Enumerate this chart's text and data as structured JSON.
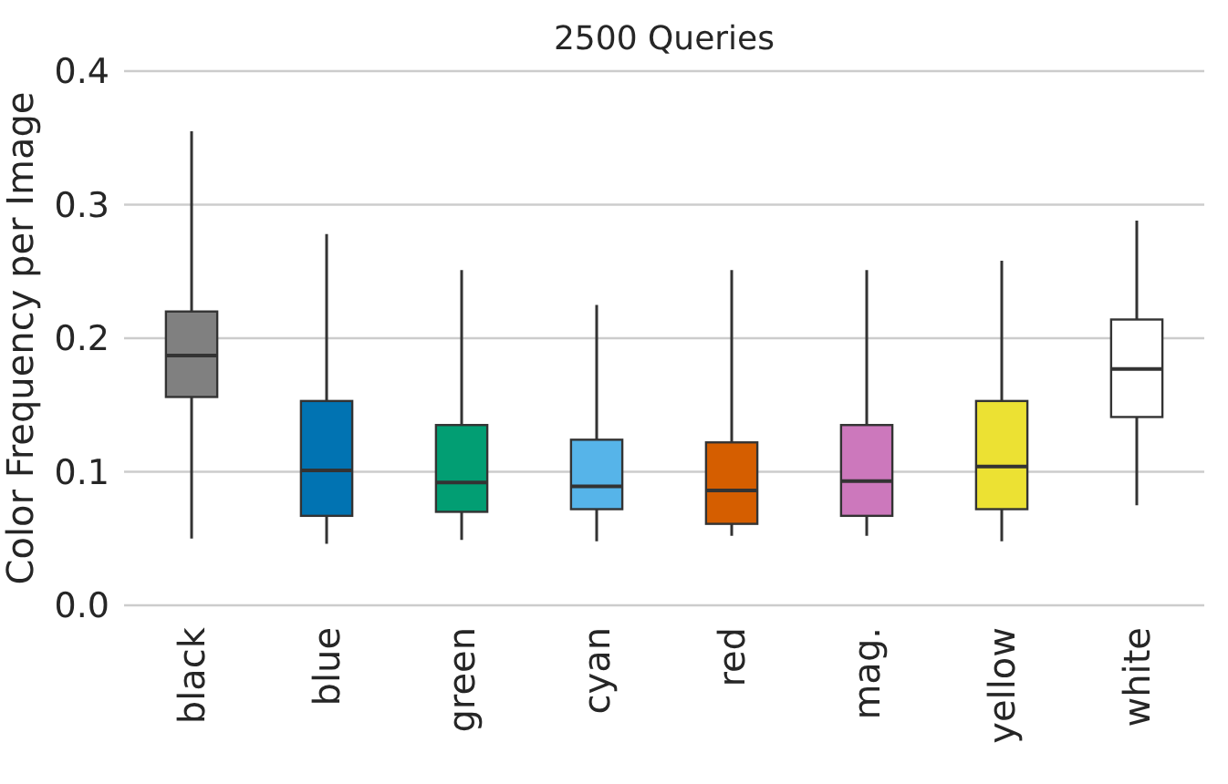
{
  "chart_data": {
    "type": "box",
    "title": "2500 Queries",
    "ylabel": "Color Frequency per Image",
    "categories": [
      "black",
      "blue",
      "green",
      "cyan",
      "red",
      "mag.",
      "yellow",
      "white"
    ],
    "colors": [
      "#808080",
      "#0173b2",
      "#029e73",
      "#56b4e9",
      "#d55e00",
      "#cc78bc",
      "#ece133",
      "#ffffff"
    ],
    "boxes": [
      {
        "low": 0.05,
        "q1": 0.156,
        "median": 0.187,
        "q3": 0.22,
        "high": 0.355
      },
      {
        "low": 0.046,
        "q1": 0.067,
        "median": 0.101,
        "q3": 0.153,
        "high": 0.278
      },
      {
        "low": 0.049,
        "q1": 0.07,
        "median": 0.092,
        "q3": 0.135,
        "high": 0.251
      },
      {
        "low": 0.048,
        "q1": 0.072,
        "median": 0.089,
        "q3": 0.124,
        "high": 0.225
      },
      {
        "low": 0.052,
        "q1": 0.061,
        "median": 0.086,
        "q3": 0.122,
        "high": 0.251
      },
      {
        "low": 0.052,
        "q1": 0.067,
        "median": 0.093,
        "q3": 0.135,
        "high": 0.251
      },
      {
        "low": 0.048,
        "q1": 0.072,
        "median": 0.104,
        "q3": 0.153,
        "high": 0.258
      },
      {
        "low": 0.075,
        "q1": 0.141,
        "median": 0.177,
        "q3": 0.214,
        "high": 0.288
      }
    ],
    "ylim": [
      0,
      0.4
    ],
    "yticks": [
      {
        "value": 0,
        "label": "0.0"
      },
      {
        "value": 0.1,
        "label": "0.1"
      },
      {
        "value": 0.2,
        "label": "0.2"
      },
      {
        "value": 0.3,
        "label": "0.3"
      },
      {
        "value": 0.4,
        "label": "0.4"
      }
    ],
    "grid": "y"
  }
}
